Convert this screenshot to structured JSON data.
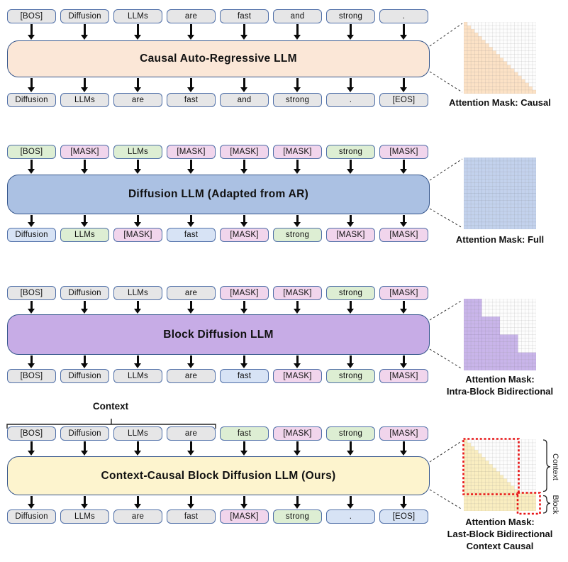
{
  "palette": {
    "token_border": "#4f6fa8",
    "box_border": "#34558b",
    "token_fills": {
      "gray": "#e6e6e7",
      "green": "#ddeed3",
      "pink": "#f1d5ec",
      "blue": "#d7e3f5"
    },
    "mask_empty": "#fdfdfd",
    "annotation_red": "#e81416"
  },
  "sections": [
    {
      "id": "causal-ar",
      "model_label": "Causal Auto-Regressive LLM",
      "box_fill": "#fbe7d7",
      "top_tokens": [
        {
          "text": "[BOS]",
          "fill": "gray"
        },
        {
          "text": "Diffusion",
          "fill": "gray"
        },
        {
          "text": "LLMs",
          "fill": "gray"
        },
        {
          "text": "are",
          "fill": "gray"
        },
        {
          "text": "fast",
          "fill": "gray"
        },
        {
          "text": "and",
          "fill": "gray"
        },
        {
          "text": "strong",
          "fill": "gray"
        },
        {
          "text": ".",
          "fill": "gray"
        }
      ],
      "bottom_tokens": [
        {
          "text": "Diffusion",
          "fill": "gray"
        },
        {
          "text": "LLMs",
          "fill": "gray"
        },
        {
          "text": "are",
          "fill": "gray"
        },
        {
          "text": "fast",
          "fill": "gray"
        },
        {
          "text": "and",
          "fill": "gray"
        },
        {
          "text": "strong",
          "fill": "gray"
        },
        {
          "text": ".",
          "fill": "gray"
        },
        {
          "text": "[EOS]",
          "fill": "gray"
        }
      ],
      "mask": {
        "type": "causal",
        "grid": 20,
        "fill": "#fce2c6",
        "caption_lines": [
          "Attention Mask: Causal"
        ]
      }
    },
    {
      "id": "diffusion-llm",
      "model_label": "Diffusion LLM (Adapted from AR)",
      "box_fill": "#abc1e3",
      "top_tokens": [
        {
          "text": "[BOS]",
          "fill": "green"
        },
        {
          "text": "[MASK]",
          "fill": "pink"
        },
        {
          "text": "LLMs",
          "fill": "green"
        },
        {
          "text": "[MASK]",
          "fill": "pink"
        },
        {
          "text": "[MASK]",
          "fill": "pink"
        },
        {
          "text": "[MASK]",
          "fill": "pink"
        },
        {
          "text": "strong",
          "fill": "green"
        },
        {
          "text": "[MASK]",
          "fill": "pink"
        }
      ],
      "bottom_tokens": [
        {
          "text": "Diffusion",
          "fill": "blue"
        },
        {
          "text": "LLMs",
          "fill": "green"
        },
        {
          "text": "[MASK]",
          "fill": "pink"
        },
        {
          "text": "fast",
          "fill": "blue"
        },
        {
          "text": "[MASK]",
          "fill": "pink"
        },
        {
          "text": "strong",
          "fill": "green"
        },
        {
          "text": "[MASK]",
          "fill": "pink"
        },
        {
          "text": "[MASK]",
          "fill": "pink"
        }
      ],
      "mask": {
        "type": "full",
        "grid": 20,
        "fill": "#c3d2ed",
        "caption_lines": [
          "Attention Mask: Full"
        ]
      }
    },
    {
      "id": "block-diffusion",
      "model_label": "Block Diffusion LLM",
      "box_fill": "#c7ace6",
      "top_tokens": [
        {
          "text": "[BOS]",
          "fill": "gray"
        },
        {
          "text": "Diffusion",
          "fill": "gray"
        },
        {
          "text": "LLMs",
          "fill": "gray"
        },
        {
          "text": "are",
          "fill": "gray"
        },
        {
          "text": "[MASK]",
          "fill": "pink"
        },
        {
          "text": "[MASK]",
          "fill": "pink"
        },
        {
          "text": "strong",
          "fill": "green"
        },
        {
          "text": "[MASK]",
          "fill": "pink"
        }
      ],
      "bottom_tokens": [
        {
          "text": "[BOS]",
          "fill": "gray"
        },
        {
          "text": "Diffusion",
          "fill": "gray"
        },
        {
          "text": "LLMs",
          "fill": "gray"
        },
        {
          "text": "are",
          "fill": "gray"
        },
        {
          "text": "fast",
          "fill": "blue"
        },
        {
          "text": "[MASK]",
          "fill": "pink"
        },
        {
          "text": "strong",
          "fill": "green"
        },
        {
          "text": "[MASK]",
          "fill": "pink"
        }
      ],
      "mask": {
        "type": "block-staircase",
        "grid": 20,
        "block_size": 5,
        "fill": "#c9b5ea",
        "caption_lines": [
          "Attention Mask:",
          "Intra-Block Bidirectional"
        ]
      }
    },
    {
      "id": "context-causal-block-diffusion",
      "model_label": "Context-Causal Block Diffusion LLM (Ours)",
      "box_fill": "#fdf4ce",
      "context_label": "Context",
      "context_span_tokens": 4,
      "top_tokens": [
        {
          "text": "[BOS]",
          "fill": "gray"
        },
        {
          "text": "Diffusion",
          "fill": "gray"
        },
        {
          "text": "LLMs",
          "fill": "gray"
        },
        {
          "text": "are",
          "fill": "gray"
        },
        {
          "text": "fast",
          "fill": "green"
        },
        {
          "text": "[MASK]",
          "fill": "pink"
        },
        {
          "text": "strong",
          "fill": "green"
        },
        {
          "text": "[MASK]",
          "fill": "pink"
        }
      ],
      "bottom_tokens": [
        {
          "text": "Diffusion",
          "fill": "gray"
        },
        {
          "text": "LLMs",
          "fill": "gray"
        },
        {
          "text": "are",
          "fill": "gray"
        },
        {
          "text": "fast",
          "fill": "gray"
        },
        {
          "text": "[MASK]",
          "fill": "pink"
        },
        {
          "text": "strong",
          "fill": "green"
        },
        {
          "text": ".",
          "fill": "blue"
        },
        {
          "text": "[EOS]",
          "fill": "blue"
        }
      ],
      "mask": {
        "type": "context-causal",
        "grid": 20,
        "context_len": 15,
        "block_size": 5,
        "fill": "#faeec1",
        "caption_lines": [
          "Attention Mask:",
          "Last-Block Bidirectional",
          "Context Causal"
        ],
        "annotations": {
          "context_label": "Context",
          "block_label": "Block"
        }
      }
    }
  ]
}
